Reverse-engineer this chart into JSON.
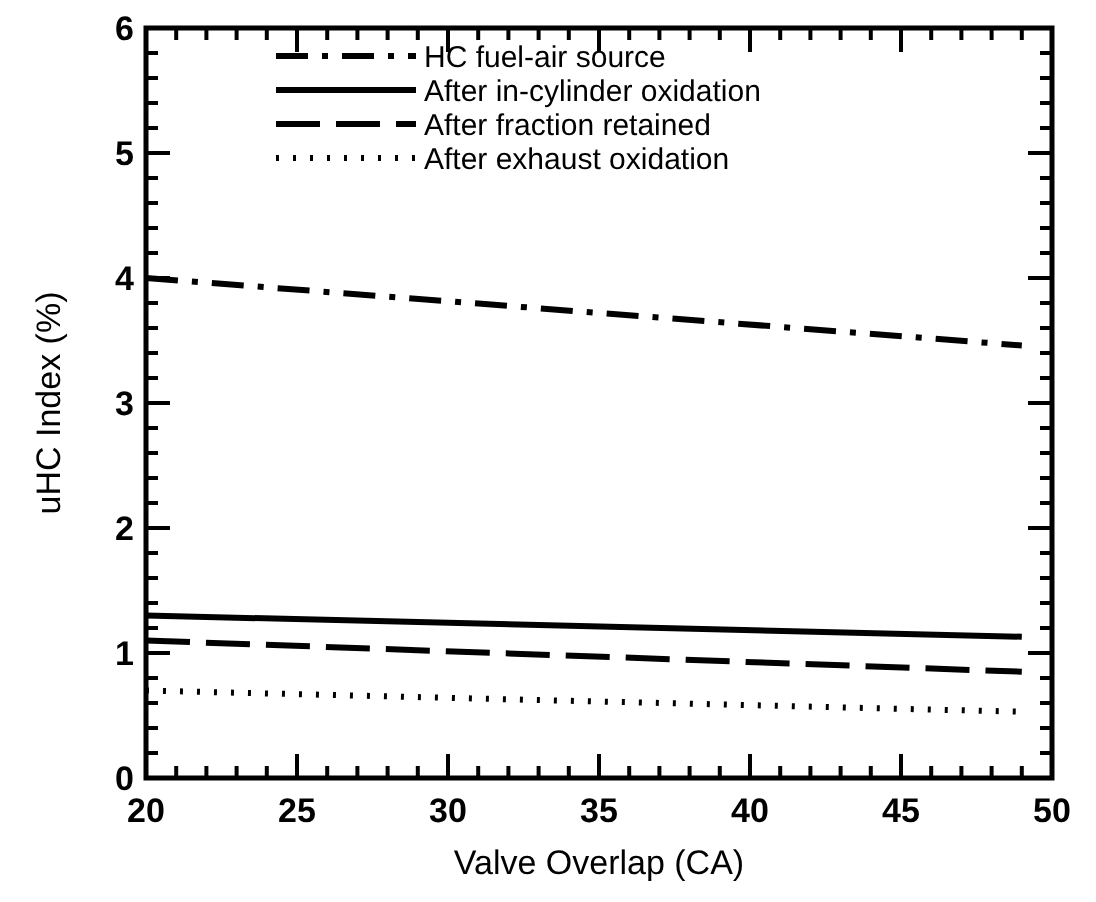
{
  "chart_data": {
    "type": "line",
    "xlabel": "Valve Overlap (CA)",
    "ylabel": "uHC Index (%)",
    "xlim": [
      20,
      50
    ],
    "ylim": [
      0,
      6
    ],
    "xticks": [
      20,
      25,
      30,
      35,
      40,
      45,
      50
    ],
    "yticks": [
      0,
      1,
      2,
      3,
      4,
      5,
      6
    ],
    "legend": "top",
    "marker": "none",
    "x": [
      20,
      49
    ],
    "series": [
      {
        "name": "HC fuel-air source",
        "color": "#000000",
        "line_style": "dashdot",
        "values": [
          4.0,
          3.46
        ]
      },
      {
        "name": "After in-cylinder oxidation",
        "color": "#000000",
        "line_style": "solid",
        "values": [
          1.3,
          1.13
        ]
      },
      {
        "name": "After fraction retained",
        "color": "#000000",
        "line_style": "dashed",
        "values": [
          1.1,
          0.85
        ]
      },
      {
        "name": "After exhaust oxidation",
        "color": "#000000",
        "line_style": "dotted",
        "values": [
          0.7,
          0.53
        ]
      }
    ]
  }
}
